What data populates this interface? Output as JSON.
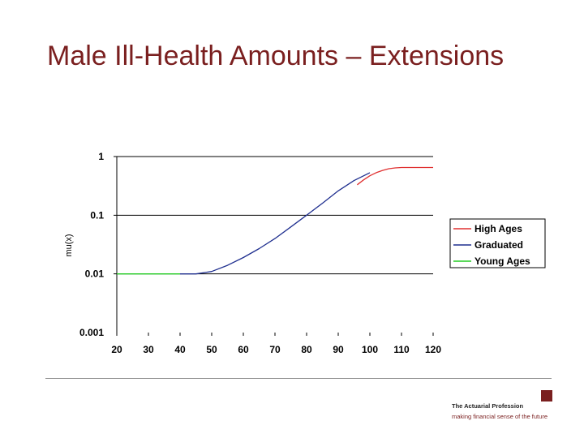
{
  "slide": {
    "title": "Male Ill-Health Amounts – Extensions"
  },
  "branding": {
    "name": "The Actuarial Profession",
    "tagline": "making financial sense of the future",
    "accent": "#7a1f1f"
  },
  "chart_data": {
    "type": "line",
    "title": "",
    "xlabel": "",
    "ylabel": "mu(x)",
    "yscale": "log",
    "xlim": [
      20,
      120
    ],
    "ylim": [
      0.001,
      1
    ],
    "x_ticks": [
      20,
      30,
      40,
      50,
      60,
      70,
      80,
      90,
      100,
      110,
      120
    ],
    "y_ticks": [
      {
        "value": 0.001,
        "label": "0.001"
      },
      {
        "value": 0.01,
        "label": "0.01"
      },
      {
        "value": 0.1,
        "label": "0.1"
      },
      {
        "value": 1,
        "label": "1"
      }
    ],
    "grid": "horizontal",
    "legend_position": "right",
    "series": [
      {
        "name": "High Ages",
        "color": "#e03030",
        "x": [
          96,
          98,
          100,
          102,
          104,
          106,
          108,
          110,
          115,
          120
        ],
        "y": [
          0.33,
          0.4,
          0.47,
          0.53,
          0.58,
          0.62,
          0.64,
          0.65,
          0.65,
          0.65
        ]
      },
      {
        "name": "Graduated",
        "color": "#1f2f8f",
        "x": [
          40,
          45,
          50,
          55,
          60,
          65,
          70,
          75,
          80,
          85,
          90,
          95,
          100
        ],
        "y": [
          0.01,
          0.01,
          0.011,
          0.014,
          0.019,
          0.027,
          0.04,
          0.063,
          0.1,
          0.16,
          0.26,
          0.39,
          0.53
        ]
      },
      {
        "name": "Young Ages",
        "color": "#22cc22",
        "x": [
          20,
          25,
          30,
          35,
          40
        ],
        "y": [
          0.01,
          0.01,
          0.01,
          0.01,
          0.01
        ]
      }
    ]
  }
}
